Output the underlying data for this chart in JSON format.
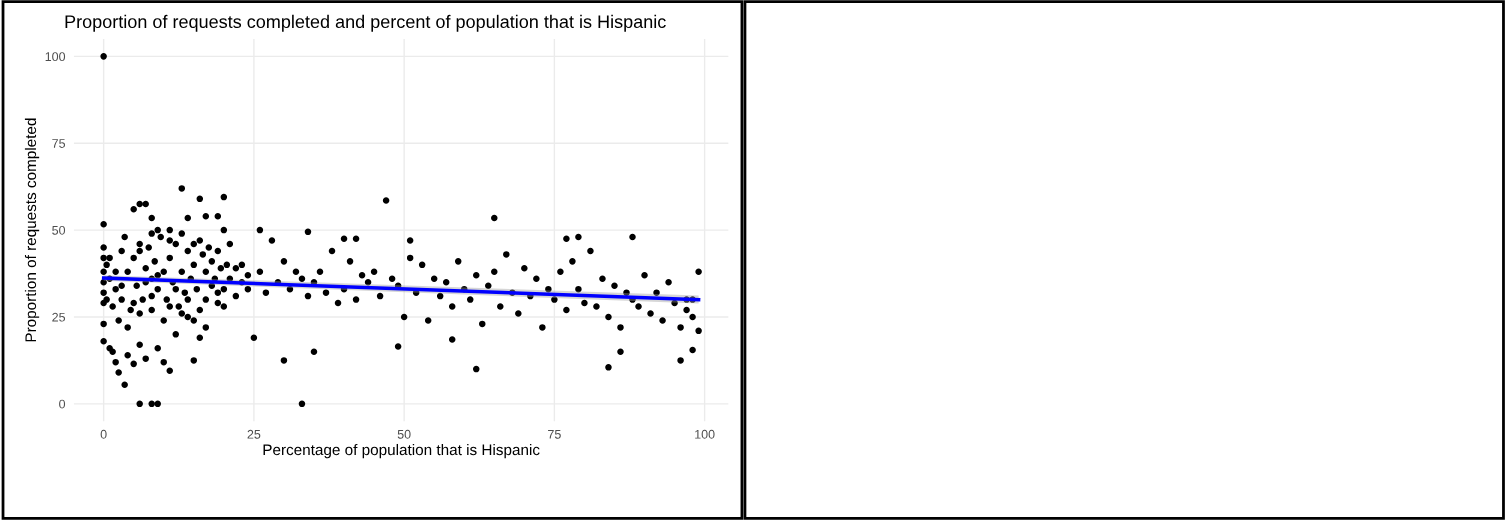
{
  "chart_data": {
    "type": "scatter",
    "title": "Proportion of requests completed and percent of population that is Hispanic",
    "xlabel": "Percentage of population that is Hispanic",
    "ylabel": "Proportion of requests completed",
    "xlim": [
      -4.95,
      103.95
    ],
    "ylim": [
      -5,
      105
    ],
    "xticks": [
      0,
      25,
      50,
      75,
      100
    ],
    "yticks": [
      0,
      25,
      50,
      75,
      100
    ],
    "grid": true,
    "series": [
      {
        "marker": "circle",
        "color": "#000000",
        "x": [
          0,
          0,
          0,
          0,
          0,
          0,
          0,
          0,
          0,
          0,
          0.5,
          1,
          1,
          1.5,
          2,
          2,
          2.5,
          3,
          3,
          3.5,
          4,
          4,
          4.5,
          5,
          5,
          5.5,
          6,
          6,
          6.5,
          7,
          7,
          7.5,
          8,
          8,
          8.5,
          9,
          9,
          9.5,
          10,
          10,
          10.5,
          11,
          11,
          11.5,
          12,
          12,
          12.5,
          13,
          13,
          13.5,
          14,
          14,
          14.5,
          15,
          15,
          15.5,
          16,
          16,
          16.5,
          17,
          17,
          17.5,
          18,
          18,
          18.5,
          19,
          19,
          19.5,
          20,
          20,
          20.5,
          21,
          21,
          22,
          22,
          23,
          23,
          24,
          24,
          25,
          26,
          26,
          27,
          28,
          29,
          30,
          31,
          32,
          33,
          34,
          35,
          36,
          37,
          38,
          39,
          40,
          41,
          42,
          43,
          44,
          45,
          46,
          47,
          48,
          49,
          50,
          51,
          52,
          53,
          54,
          55,
          56,
          57,
          58,
          59,
          60,
          61,
          62,
          63,
          64,
          65,
          66,
          67,
          68,
          69,
          70,
          71,
          72,
          73,
          74,
          75,
          76,
          77,
          78,
          79,
          80,
          81,
          82,
          83,
          84,
          85,
          86,
          87,
          88,
          89,
          90,
          91,
          92,
          93,
          94,
          95,
          96,
          97,
          98,
          99,
          99,
          98,
          97,
          0.5,
          1,
          1.5,
          2,
          2.5,
          3,
          4,
          5,
          6,
          7,
          8,
          9,
          10,
          11,
          12,
          13,
          14,
          15,
          16,
          17,
          19,
          20,
          3.5,
          6,
          8,
          9,
          11,
          13,
          15,
          5,
          6,
          7,
          8,
          11,
          14,
          16,
          17,
          19,
          20,
          30,
          33,
          35,
          40,
          42,
          49,
          51,
          58,
          62,
          65,
          77,
          79,
          84,
          86,
          88,
          96,
          98,
          6,
          8,
          9,
          34
        ],
        "values": [
          100,
          51.7,
          45,
          42,
          38,
          35,
          32,
          29,
          23,
          18,
          40,
          16,
          36,
          15,
          12,
          33,
          9,
          44,
          30,
          5.5,
          14,
          38,
          27,
          42,
          11.5,
          34,
          17,
          46,
          30,
          39,
          13,
          45,
          27,
          36,
          41,
          16,
          33,
          48,
          12,
          38,
          30,
          9.5,
          42,
          35,
          20,
          46,
          28,
          62,
          38,
          32,
          25,
          44,
          36,
          12.5,
          40,
          33,
          59,
          19,
          43,
          38,
          30,
          45,
          34,
          41,
          36,
          29,
          44,
          39,
          59.5,
          33,
          40,
          36,
          46,
          31,
          39,
          35,
          40,
          33,
          37,
          19,
          38,
          50,
          32,
          47,
          35,
          41,
          33,
          38,
          36,
          31,
          35,
          38,
          32,
          44,
          29,
          33,
          41,
          30,
          37,
          35,
          38,
          31,
          58.5,
          36,
          34,
          25,
          42,
          32,
          40,
          24,
          36,
          31,
          35,
          28,
          41,
          33,
          30,
          37,
          23,
          34,
          38,
          28,
          43,
          32,
          26,
          39,
          31,
          36,
          22,
          33,
          30,
          38,
          27,
          41,
          33,
          29,
          44,
          28,
          36,
          25,
          34,
          22,
          32,
          30,
          28,
          37,
          26,
          32,
          24,
          35,
          29,
          22,
          30,
          25,
          38,
          21,
          30,
          27,
          30,
          42,
          28,
          38,
          24,
          34,
          22,
          29,
          26,
          35,
          31,
          37,
          24,
          28,
          33,
          26,
          30,
          24,
          27,
          22,
          32,
          28,
          48,
          44,
          49,
          50,
          47,
          49,
          46,
          56,
          57.5,
          57.5,
          53.5,
          50,
          53.5,
          47,
          54,
          54,
          50,
          12.5,
          0,
          15,
          47.5,
          47.5,
          16.5,
          47,
          18.5,
          10,
          53.5,
          47.5,
          48,
          10.5,
          15,
          48,
          12.5,
          15.5,
          0,
          0,
          0,
          49.5
        ]
      },
      {
        "type": "line",
        "marker": "none",
        "color": "#0000ff",
        "x": [
          0,
          99
        ],
        "values": [
          36.2,
          30
        ],
        "lower": [
          35.4,
          28.9
        ],
        "upper": [
          37,
          31.2
        ]
      }
    ]
  }
}
